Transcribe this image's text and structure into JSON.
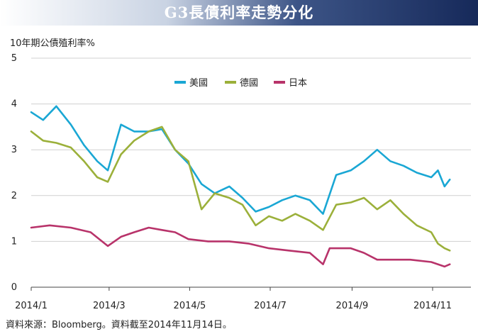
{
  "header": {
    "title": "G3長債利率走勢分化"
  },
  "footer": {
    "source": "資料來源：Bloomberg。資料截至2014年11月14日。"
  },
  "chart_data": {
    "type": "line",
    "title": "G3長債利率走勢分化",
    "ylabel": "10年期公債殖利率%",
    "xlabel": "",
    "ylim": [
      0,
      5
    ],
    "yticks": [
      0,
      1,
      2,
      3,
      4,
      5
    ],
    "xlim": [
      "2014/1/1",
      "2014/11/30"
    ],
    "xticks": [
      "2014/1",
      "2014/3",
      "2014/5",
      "2014/7",
      "2014/9",
      "2014/11"
    ],
    "grid": true,
    "legend": "top-center",
    "series": [
      {
        "name": "美國",
        "color": "#1aa7d4",
        "points": [
          [
            "2014/1/1",
            3.82
          ],
          [
            "2014/1/10",
            3.65
          ],
          [
            "2014/1/20",
            3.95
          ],
          [
            "2014/1/31",
            3.55
          ],
          [
            "2014/2/10",
            3.1
          ],
          [
            "2014/2/20",
            2.75
          ],
          [
            "2014/2/28",
            2.55
          ],
          [
            "2014/3/10",
            3.55
          ],
          [
            "2014/3/20",
            3.4
          ],
          [
            "2014/3/31",
            3.4
          ],
          [
            "2014/4/10",
            3.45
          ],
          [
            "2014/4/20",
            3.0
          ],
          [
            "2014/4/30",
            2.7
          ],
          [
            "2014/5/10",
            2.25
          ],
          [
            "2014/5/20",
            2.05
          ],
          [
            "2014/5/31",
            2.2
          ],
          [
            "2014/6/10",
            1.95
          ],
          [
            "2014/6/20",
            1.65
          ],
          [
            "2014/6/30",
            1.75
          ],
          [
            "2014/7/10",
            1.9
          ],
          [
            "2014/7/20",
            2.0
          ],
          [
            "2014/7/31",
            1.9
          ],
          [
            "2014/8/10",
            1.6
          ],
          [
            "2014/8/20",
            2.45
          ],
          [
            "2014/8/31",
            2.55
          ],
          [
            "2014/9/10",
            2.75
          ],
          [
            "2014/9/20",
            3.0
          ],
          [
            "2014/9/30",
            2.75
          ],
          [
            "2014/10/10",
            2.65
          ],
          [
            "2014/10/20",
            2.5
          ],
          [
            "2014/10/31",
            2.4
          ],
          [
            "2014/11/5",
            2.55
          ],
          [
            "2014/11/10",
            2.2
          ],
          [
            "2014/11/14",
            2.35
          ]
        ]
      },
      {
        "name": "德國",
        "color": "#9bb03a",
        "points": [
          [
            "2014/1/1",
            3.4
          ],
          [
            "2014/1/10",
            3.2
          ],
          [
            "2014/1/20",
            3.15
          ],
          [
            "2014/1/31",
            3.05
          ],
          [
            "2014/2/10",
            2.75
          ],
          [
            "2014/2/20",
            2.4
          ],
          [
            "2014/2/28",
            2.3
          ],
          [
            "2014/3/10",
            2.9
          ],
          [
            "2014/3/20",
            3.2
          ],
          [
            "2014/3/31",
            3.4
          ],
          [
            "2014/4/10",
            3.5
          ],
          [
            "2014/4/20",
            3.0
          ],
          [
            "2014/4/30",
            2.75
          ],
          [
            "2014/5/10",
            1.7
          ],
          [
            "2014/5/20",
            2.05
          ],
          [
            "2014/5/31",
            1.95
          ],
          [
            "2014/6/10",
            1.8
          ],
          [
            "2014/6/20",
            1.35
          ],
          [
            "2014/6/30",
            1.55
          ],
          [
            "2014/7/10",
            1.45
          ],
          [
            "2014/7/20",
            1.6
          ],
          [
            "2014/7/31",
            1.45
          ],
          [
            "2014/8/10",
            1.25
          ],
          [
            "2014/8/20",
            1.8
          ],
          [
            "2014/8/31",
            1.85
          ],
          [
            "2014/9/10",
            1.95
          ],
          [
            "2014/9/20",
            1.7
          ],
          [
            "2014/9/30",
            1.9
          ],
          [
            "2014/10/10",
            1.6
          ],
          [
            "2014/10/20",
            1.35
          ],
          [
            "2014/10/31",
            1.2
          ],
          [
            "2014/11/5",
            0.95
          ],
          [
            "2014/11/10",
            0.85
          ],
          [
            "2014/11/14",
            0.8
          ]
        ]
      },
      {
        "name": "日本",
        "color": "#b8336a",
        "points": [
          [
            "2014/1/1",
            1.3
          ],
          [
            "2014/1/15",
            1.35
          ],
          [
            "2014/1/31",
            1.3
          ],
          [
            "2014/2/15",
            1.2
          ],
          [
            "2014/2/28",
            0.9
          ],
          [
            "2014/3/10",
            1.1
          ],
          [
            "2014/3/20",
            1.2
          ],
          [
            "2014/3/31",
            1.3
          ],
          [
            "2014/4/10",
            1.25
          ],
          [
            "2014/4/20",
            1.2
          ],
          [
            "2014/4/30",
            1.05
          ],
          [
            "2014/5/15",
            1.0
          ],
          [
            "2014/5/31",
            1.0
          ],
          [
            "2014/6/15",
            0.95
          ],
          [
            "2014/6/30",
            0.85
          ],
          [
            "2014/7/15",
            0.8
          ],
          [
            "2014/7/31",
            0.75
          ],
          [
            "2014/8/10",
            0.5
          ],
          [
            "2014/8/15",
            0.85
          ],
          [
            "2014/8/31",
            0.85
          ],
          [
            "2014/9/10",
            0.75
          ],
          [
            "2014/9/20",
            0.6
          ],
          [
            "2014/9/30",
            0.6
          ],
          [
            "2014/10/15",
            0.6
          ],
          [
            "2014/10/31",
            0.55
          ],
          [
            "2014/11/10",
            0.45
          ],
          [
            "2014/11/14",
            0.5
          ]
        ]
      }
    ]
  }
}
